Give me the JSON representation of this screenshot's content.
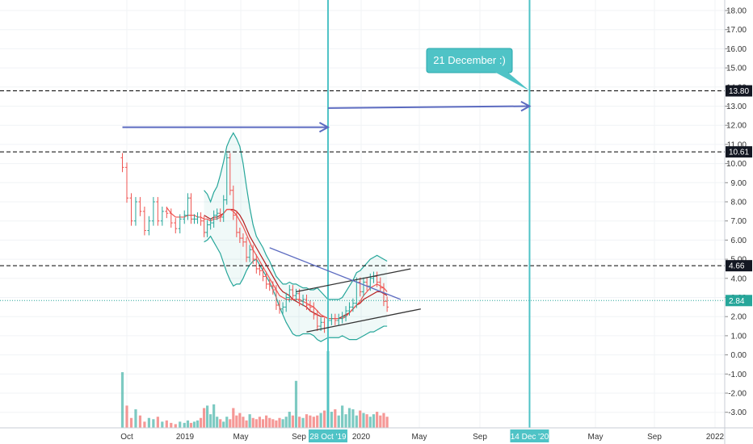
{
  "chart_data": {
    "type": "candlestick",
    "title": "",
    "xlabel": "",
    "ylabel": "",
    "ylim": [
      -3.6,
      18.5
    ],
    "grid": true,
    "x_ticks": [
      "Oct",
      "2019",
      "May",
      "Sep",
      "2020",
      "May",
      "Sep",
      "May",
      "Sep",
      "2022"
    ],
    "y_ticks": [
      "18.00",
      "17.00",
      "16.00",
      "15.00",
      "14.00",
      "13.00",
      "12.00",
      "11.00",
      "10.00",
      "9.00",
      "8.00",
      "7.00",
      "6.00",
      "5.00",
      "4.00",
      "3.00",
      "2.00",
      "1.00",
      "0.00",
      "-1.00",
      "-2.00",
      "-3.00"
    ],
    "price_series": {
      "name": "",
      "up_color": "#26a69a",
      "down_color": "#ef5350",
      "first_date": "2018-09-24",
      "interval_days": 7,
      "close": [
        9.8,
        8.2,
        7.0,
        8.0,
        7.5,
        6.5,
        7.0,
        8.0,
        7.0,
        7.5,
        7.4,
        6.9,
        6.6,
        7.1,
        7.3,
        8.2,
        7.1,
        7.1,
        7.2,
        7.0,
        6.4,
        6.8,
        6.9,
        7.3,
        7.4,
        7.2,
        8.1,
        10.3,
        8.6,
        7.3,
        6.4,
        6.1,
        5.9,
        5.1,
        5.5,
        5.0,
        4.5,
        4.4,
        4.1,
        3.7,
        3.6,
        3.4,
        2.6,
        2.4,
        2.5,
        3.0,
        3.4,
        3.1,
        3.2,
        2.8,
        2.9,
        2.6,
        2.5,
        2.1,
        1.5,
        1.7,
        1.4,
        1.8,
        1.9,
        1.8,
        1.9,
        2.0,
        2.3,
        2.5,
        2.7,
        3.8,
        3.3,
        3.8,
        3.6,
        4.0,
        4.1,
        3.8,
        3.5,
        2.8,
        2.5
      ]
    },
    "bollinger_bands": {
      "upper": [
        null,
        null,
        null,
        null,
        null,
        null,
        null,
        null,
        null,
        null,
        null,
        null,
        null,
        null,
        null,
        null,
        null,
        null,
        null,
        null,
        8.6,
        8.4,
        8.0,
        8.5,
        8.8,
        9.4,
        10.1,
        10.9,
        11.3,
        11.6,
        11.3,
        10.9,
        10.0,
        8.8,
        7.7,
        6.8,
        6.2,
        5.9,
        5.6,
        5.2,
        4.9,
        4.5,
        4.1,
        3.9,
        3.7,
        3.7,
        3.8,
        3.7,
        3.7,
        3.6,
        3.5,
        3.5,
        3.4,
        3.4,
        3.5,
        3.3,
        3.1,
        2.9,
        2.9,
        2.9,
        2.9,
        3.0,
        3.3,
        3.6,
        3.9,
        4.3,
        4.4,
        4.6,
        4.8,
        5.0,
        5.1,
        5.2,
        5.1,
        5.0,
        4.9
      ],
      "basis": [
        null,
        null,
        null,
        null,
        null,
        null,
        null,
        null,
        null,
        null,
        null,
        null,
        null,
        null,
        null,
        null,
        null,
        null,
        null,
        null,
        7.3,
        7.2,
        7.1,
        7.2,
        7.2,
        7.3,
        7.4,
        7.6,
        7.6,
        7.6,
        7.5,
        7.3,
        7.0,
        6.6,
        6.2,
        5.9,
        5.6,
        5.3,
        5.0,
        4.7,
        4.4,
        4.1,
        3.8,
        3.5,
        3.3,
        3.2,
        3.1,
        2.9,
        2.8,
        2.7,
        2.6,
        2.5,
        2.3,
        2.2,
        2.1,
        2.0,
        2.0,
        1.9,
        1.9,
        1.9,
        1.9,
        2.0,
        2.1,
        2.2,
        2.4,
        2.6,
        2.7,
        2.9,
        3.0,
        3.1,
        3.2,
        3.3,
        3.3,
        3.2,
        3.1
      ],
      "lower": [
        null,
        null,
        null,
        null,
        null,
        null,
        null,
        null,
        null,
        null,
        null,
        null,
        null,
        null,
        null,
        null,
        null,
        null,
        null,
        null,
        5.9,
        6.0,
        6.2,
        5.9,
        5.6,
        5.3,
        4.8,
        4.3,
        3.9,
        3.6,
        3.7,
        3.7,
        4.0,
        4.4,
        4.7,
        4.9,
        5.0,
        4.7,
        4.4,
        4.1,
        3.8,
        3.4,
        3.0,
        2.5,
        2.1,
        1.7,
        1.4,
        1.1,
        1.0,
        1.0,
        1.1,
        1.1,
        1.1,
        1.0,
        0.8,
        0.7,
        0.8,
        0.9,
        0.9,
        0.9,
        0.9,
        1.0,
        0.9,
        0.8,
        0.8,
        0.8,
        0.9,
        1.0,
        1.1,
        1.2,
        1.2,
        1.3,
        1.4,
        1.5,
        1.5
      ]
    },
    "moving_average": [
      null,
      null,
      null,
      null,
      null,
      null,
      null,
      null,
      null,
      null,
      7.7,
      7.4,
      7.2,
      7.2,
      7.2,
      7.3,
      7.3,
      7.3,
      7.2,
      7.2,
      7.1,
      7.1,
      7.0,
      7.1,
      7.1,
      7.2,
      7.4,
      7.6,
      7.6,
      7.5,
      7.3,
      7.0,
      6.7,
      6.3,
      5.9,
      5.5,
      5.2,
      4.9,
      4.6,
      4.3,
      4.0,
      3.7,
      3.4,
      3.1,
      3.0,
      2.9,
      2.9,
      2.9,
      2.9,
      2.9,
      2.8,
      2.7,
      2.6,
      2.5,
      2.3,
      2.1,
      2.0,
      1.9,
      1.9,
      1.9,
      1.9,
      1.9,
      2.0,
      2.2,
      2.4,
      2.6,
      2.8,
      3.1,
      3.3,
      3.5,
      3.6,
      3.7,
      3.6,
      3.5,
      3.3
    ],
    "volume": [
      45,
      18,
      8,
      15,
      10,
      5,
      8,
      7,
      9,
      5,
      6,
      4,
      3,
      5,
      4,
      6,
      4,
      5,
      6,
      8,
      16,
      18,
      11,
      19,
      9,
      7,
      5,
      9,
      7,
      16,
      10,
      12,
      9,
      6,
      11,
      8,
      7,
      9,
      7,
      10,
      8,
      7,
      6,
      8,
      7,
      9,
      13,
      10,
      38,
      9,
      8,
      11,
      10,
      9,
      10,
      12,
      14,
      62,
      13,
      15,
      10,
      18,
      11,
      16,
      15,
      10,
      14,
      12,
      11,
      9,
      11,
      13,
      10,
      12,
      9
    ],
    "horizontal_levels": [
      {
        "value": "13.80",
        "style": "dashed"
      },
      {
        "value": "10.61",
        "style": "dashed"
      },
      {
        "value": "4.66",
        "style": "dashed"
      },
      {
        "value": "2.84",
        "style": "dotted",
        "color": "#26a69a"
      }
    ],
    "vertical_markers": [
      {
        "date": "2019-10-28",
        "label": "28 Oct '19",
        "color": "#4fc3c6"
      },
      {
        "date": "2020-12-14",
        "label": "14 Dec '20",
        "color": "#4fc3c6"
      }
    ],
    "arrows": [
      {
        "from": {
          "date": "2018-09-24",
          "value": 11.9
        },
        "to": {
          "date": "2019-10-28",
          "value": 11.9
        },
        "color": "#5c6bc0"
      },
      {
        "from": {
          "date": "2019-10-28",
          "value": 12.9
        },
        "to": {
          "date": "2020-12-14",
          "value": 13.0
        },
        "color": "#5c6bc0"
      }
    ],
    "trendlines": [
      {
        "from": {
          "date": "2019-08-26",
          "value": 3.3
        },
        "to": {
          "date": "2020-04-13",
          "value": 4.5
        },
        "color": "#333333"
      },
      {
        "from": {
          "date": "2019-09-16",
          "value": 1.2
        },
        "to": {
          "date": "2020-05-04",
          "value": 2.4
        },
        "color": "#333333"
      },
      {
        "from": {
          "date": "2019-07-01",
          "value": 5.6
        },
        "to": {
          "date": "2020-03-23",
          "value": 2.9
        },
        "color": "#5c6bc0"
      }
    ],
    "annotation": {
      "text": "21 December :)",
      "color": "#4fc3c6"
    }
  }
}
